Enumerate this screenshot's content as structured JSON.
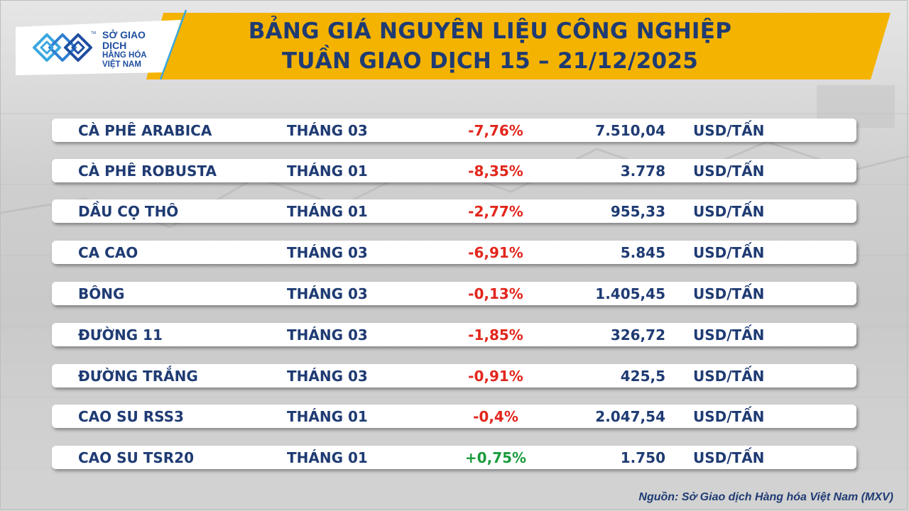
{
  "header": {
    "title_line1": "BẢNG GIÁ NGUYÊN LIỆU CÔNG NGHIỆP",
    "title_line2": "TUẦN GIAO DỊCH 15 – 21/12/2025"
  },
  "logo": {
    "line1": "SỞ GIAO DỊCH",
    "line2": "HÀNG HÓA",
    "line3": "VIỆT NAM",
    "tm": "TM"
  },
  "colors": {
    "banner": "#f5b301",
    "title": "#1f3b73",
    "negative": "#e2261c",
    "positive": "#1a9b3c"
  },
  "rows": [
    {
      "name": "CÀ PHÊ ARABICA",
      "month": "THÁNG 03",
      "change": "-7,76%",
      "direction": "neg",
      "price": "7.510,04",
      "unit": "USD/TẤN"
    },
    {
      "name": "CÀ PHÊ ROBUSTA",
      "month": "THÁNG 01",
      "change": "-8,35%",
      "direction": "neg",
      "price": "3.778",
      "unit": "USD/TẤN"
    },
    {
      "name": "DẦU CỌ THÔ",
      "month": "THÁNG 01",
      "change": "-2,77%",
      "direction": "neg",
      "price": "955,33",
      "unit": "USD/TẤN"
    },
    {
      "name": "CA CAO",
      "month": "THÁNG 03",
      "change": "-6,91%",
      "direction": "neg",
      "price": "5.845",
      "unit": "USD/TẤN"
    },
    {
      "name": "BÔNG",
      "month": "THÁNG 03",
      "change": "-0,13%",
      "direction": "neg",
      "price": "1.405,45",
      "unit": "USD/TẤN"
    },
    {
      "name": "ĐƯỜNG 11",
      "month": "THÁNG 03",
      "change": "-1,85%",
      "direction": "neg",
      "price": "326,72",
      "unit": "USD/TẤN"
    },
    {
      "name": "ĐƯỜNG TRẮNG",
      "month": "THÁNG 03",
      "change": "-0,91%",
      "direction": "neg",
      "price": "425,5",
      "unit": "USD/TẤN"
    },
    {
      "name": "CAO SU RSS3",
      "month": "THÁNG 01",
      "change": "-0,4%",
      "direction": "neg",
      "price": "2.047,54",
      "unit": "USD/TẤN"
    },
    {
      "name": "CAO SU TSR20",
      "month": "THÁNG 01",
      "change": "+0,75%",
      "direction": "pos",
      "price": "1.750",
      "unit": "USD/TẤN"
    }
  ],
  "footer": {
    "source": "Nguồn: Sở Giao dịch Hàng hóa Việt Nam (MXV)"
  }
}
